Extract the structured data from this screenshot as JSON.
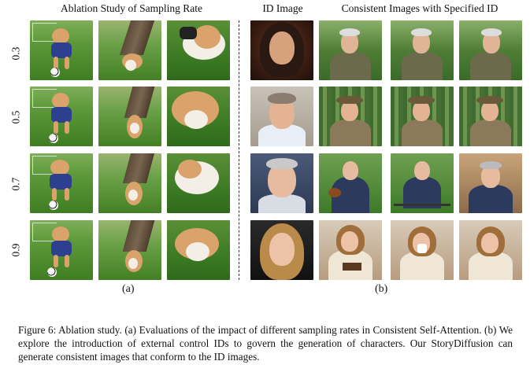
{
  "left_panel": {
    "title": "Ablation Study of Sampling Rate",
    "row_labels": [
      "0.3",
      "0.5",
      "0.7",
      "0.9"
    ],
    "sublabel": "(a)"
  },
  "right_panel": {
    "id_header": "ID Image",
    "consistent_header": "Consistent Images with Specified ID",
    "sublabel": "(b)"
  },
  "caption": {
    "text": "Figure 6:  Ablation study.  (a) Evaluations of the impact of different sampling rates in Consistent Self-Attention. (b) We explore the introduction of external control IDs to govern the generation of characters. Our StoryDiffusion can generate consistent images that conform to the ID images."
  }
}
